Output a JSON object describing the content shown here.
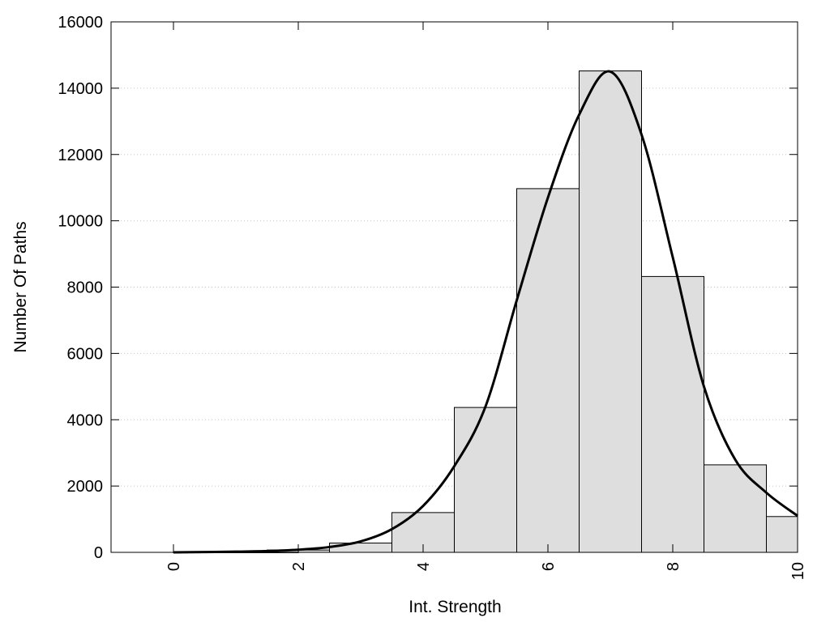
{
  "chart_data": {
    "type": "bar",
    "title": "",
    "xlabel": "Int. Strength",
    "ylabel": "Number Of Paths",
    "xlim": [
      -1,
      10
    ],
    "ylim": [
      0,
      16000
    ],
    "xticks": [
      "0",
      "2",
      "4",
      "6",
      "8",
      "10"
    ],
    "xtick_values": [
      0,
      2,
      4,
      6,
      8,
      10
    ],
    "yticks": [
      "0",
      "2000",
      "4000",
      "6000",
      "8000",
      "10000",
      "12000",
      "14000",
      "16000"
    ],
    "ytick_values": [
      0,
      2000,
      4000,
      6000,
      8000,
      10000,
      12000,
      14000,
      16000
    ],
    "grid": "horizontal dotted",
    "legend": "none",
    "bar_color": "#dedede",
    "bar_edge_color": "#000000",
    "line_color": "#000000",
    "bars": [
      {
        "x0": 0.0,
        "x1": 1.0,
        "value": 0
      },
      {
        "x0": 1.0,
        "x1": 2.0,
        "value": 0
      },
      {
        "x0": 1.5,
        "x1": 2.5,
        "value": 70
      },
      {
        "x0": 2.5,
        "x1": 3.5,
        "value": 280
      },
      {
        "x0": 3.5,
        "x1": 4.5,
        "value": 1200
      },
      {
        "x0": 4.5,
        "x1": 5.5,
        "value": 4370
      },
      {
        "x0": 5.5,
        "x1": 6.5,
        "value": 10970
      },
      {
        "x0": 6.5,
        "x1": 7.5,
        "value": 14520
      },
      {
        "x0": 7.5,
        "x1": 8.5,
        "value": 8320
      },
      {
        "x0": 8.5,
        "x1": 9.5,
        "value": 2640
      },
      {
        "x0": 9.5,
        "x1": 10.0,
        "value": 1080
      }
    ],
    "curve": {
      "x": [
        0,
        0.5,
        1,
        1.5,
        2,
        2.5,
        3,
        3.5,
        4,
        4.5,
        5,
        5.5,
        6,
        6.5,
        7,
        7.5,
        8,
        8.5,
        9,
        9.5,
        10
      ],
      "y": [
        0,
        10,
        20,
        40,
        80,
        160,
        330,
        700,
        1400,
        2600,
        4400,
        7600,
        10700,
        13200,
        14500,
        12600,
        8900,
        5000,
        2800,
        1800,
        1100
      ]
    }
  }
}
